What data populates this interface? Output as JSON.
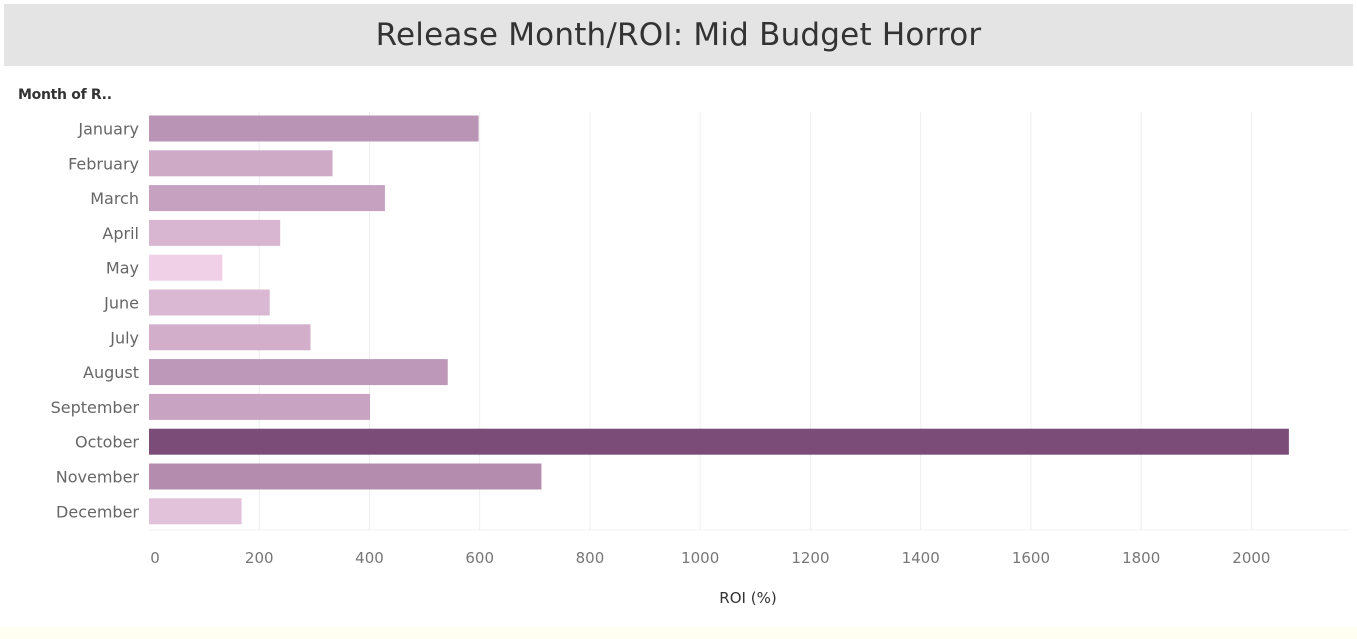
{
  "chart_data": {
    "type": "bar",
    "orientation": "horizontal",
    "title": "Release Month/ROI: Mid Budget Horror",
    "category_header": "Month of R..",
    "xlabel": "ROI (%)",
    "categories": [
      "January",
      "February",
      "March",
      "April",
      "May",
      "June",
      "July",
      "August",
      "September",
      "October",
      "November",
      "December"
    ],
    "values": [
      598,
      333,
      428,
      238,
      133,
      219,
      293,
      542,
      401,
      2068,
      712,
      168
    ],
    "xlim": [
      0,
      2150
    ],
    "xticks": [
      0,
      200,
      400,
      600,
      800,
      1000,
      1200,
      1400,
      1600,
      1800,
      2000
    ],
    "grid": "vertical",
    "color_scale": [
      "#efd0e7",
      "#7b4c78"
    ]
  }
}
